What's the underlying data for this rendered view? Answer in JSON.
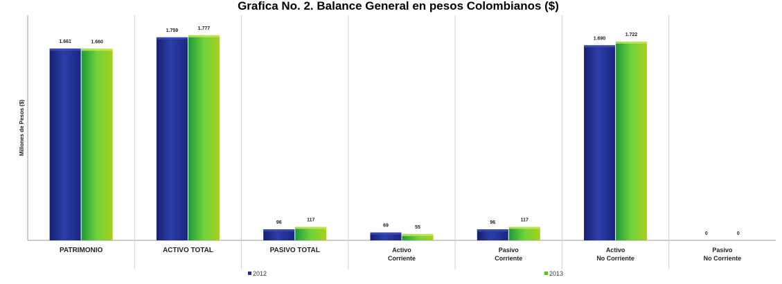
{
  "chart_data": {
    "type": "bar",
    "title": "Grafica No. 2. Balance General en pesos Colombianos ($)",
    "ylabel": "Millones de Pesos ($)",
    "xlabel": "",
    "categories": [
      "PATRIMONIO",
      "ACTIVO TOTAL",
      "PASIVO TOTAL",
      "Activo\nCorriente",
      "Pasivo\nCorriente",
      "Activo\nNo Corriente",
      "Pasivo\nNo Corriente"
    ],
    "series": [
      {
        "name": "2012",
        "values": [
          1661,
          1759,
          96,
          69,
          96,
          1690,
          0
        ],
        "labels": [
          "1.661",
          "1.759",
          "96",
          "69",
          "96",
          "1.690",
          "0"
        ],
        "color": "#1f2f8f"
      },
      {
        "name": "2013",
        "values": [
          1660,
          1777,
          117,
          55,
          117,
          1722,
          0
        ],
        "labels": [
          "1.660",
          "1.777",
          "117",
          "55",
          "117",
          "1.722",
          "0"
        ],
        "color": "#5cbf2a"
      }
    ],
    "ylim": [
      0,
      1950
    ],
    "grid": false,
    "category_separators": true,
    "legend_position": "bottom",
    "show_y_ticks": false
  }
}
